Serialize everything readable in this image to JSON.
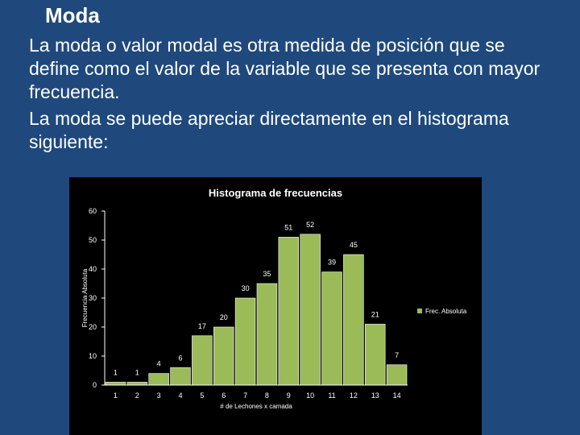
{
  "slide": {
    "title": "Moda",
    "paragraph1": "La moda o valor modal es otra medida de posición que se define como el valor de la variable que se presenta con mayor frecuencia.",
    "paragraph2": "La moda se puede apreciar directamente en el histograma siguiente:"
  },
  "colors": {
    "background": "#1f497d",
    "bar_fill": "#9bbb59",
    "bar_stroke": "#ffffff",
    "gridline": "#ffffff"
  },
  "chart_data": {
    "type": "bar",
    "title": "Histograma de frecuencias",
    "xlabel": "# de Lechones x camada",
    "ylabel": "Frecuencia Absoluta",
    "categories": [
      "1",
      "2",
      "3",
      "4",
      "5",
      "6",
      "7",
      "8",
      "9",
      "10",
      "11",
      "12",
      "13",
      "14"
    ],
    "series": [
      {
        "name": "Frec. Absoluta",
        "values": [
          1,
          1,
          4,
          6,
          17,
          20,
          30,
          35,
          51,
          52,
          39,
          45,
          21,
          7
        ]
      }
    ],
    "ylim": [
      0,
      60
    ],
    "yticks": [
      "0",
      "10",
      "20",
      "30",
      "40",
      "50",
      "60"
    ],
    "grid": false,
    "legend": "right"
  }
}
